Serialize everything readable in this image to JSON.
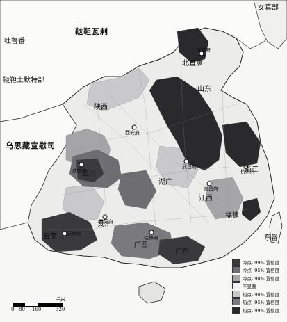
{
  "labels": {
    "region_mongolia": "鞑靼瓦剌",
    "region_jurchen": "女真部",
    "region_turpan": "吐鲁番",
    "region_tatar_tumote": "鞑靼土默特部",
    "region_tibet": "乌思藏宣慰司",
    "prov_beizhili": "北直隶",
    "prov_shandong": "山东",
    "prov_shaanxi": "陕西",
    "prov_sichuan": "四川",
    "prov_huguang": "湖广",
    "prov_jiangxi": "江西",
    "prov_zhejiang": "浙江",
    "prov_fujian": "福建",
    "prov_guangxi": "广西",
    "prov_guangdong": "广东",
    "prov_yunnan": "云南",
    "prov_guizhou": "贵州",
    "prov_east_sea": "东番"
  },
  "cities": [
    {
      "name": "西安府"
    },
    {
      "name": "成都府"
    },
    {
      "name": "武昌府"
    },
    {
      "name": "南昌府"
    },
    {
      "name": "贵阳府"
    },
    {
      "name": "桂林府"
    },
    {
      "name": "云南府"
    },
    {
      "name": "济南府"
    },
    {
      "name": "杭州府"
    }
  ],
  "legend": [
    {
      "label": "冷点- 99% 置信度",
      "color": "#3a3a3c"
    },
    {
      "label": "冷点- 95% 置信度",
      "color": "#6e6e72"
    },
    {
      "label": "冷点- 90% 置信度",
      "color": "#a5a5a8"
    },
    {
      "label": "不显著",
      "color": "#f2f2f2"
    },
    {
      "label": "热点- 90% 置信度",
      "color": "#c9c9cc"
    },
    {
      "label": "热点- 95% 置信度",
      "color": "#7a7a7e"
    },
    {
      "label": "热点- 99% 置信度",
      "color": "#2a2a2c"
    }
  ],
  "scale": {
    "unit": "千米",
    "ticks": [
      "0",
      "80",
      "160",
      "320"
    ]
  }
}
